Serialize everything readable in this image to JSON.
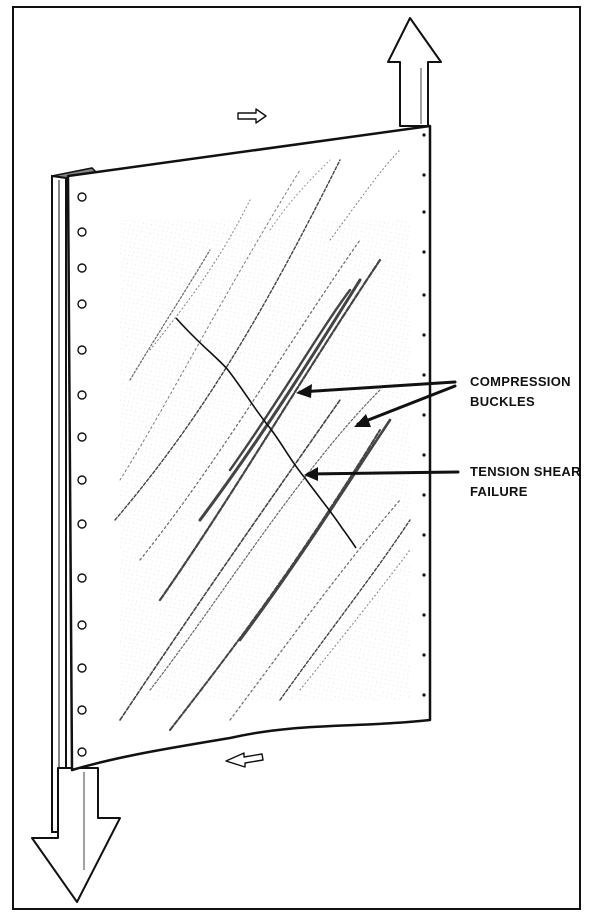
{
  "labels": {
    "compression_line1": "COMPRESSION",
    "compression_line2": "BUCKLES",
    "tension_line1": "TENSION SHEAR",
    "tension_line2": "FAILURE"
  },
  "colors": {
    "ink": "#111111",
    "shading": "#555555"
  },
  "icons": [
    "arrow-up-icon",
    "arrow-down-icon",
    "arrow-right-icon",
    "arrow-left-icon"
  ]
}
